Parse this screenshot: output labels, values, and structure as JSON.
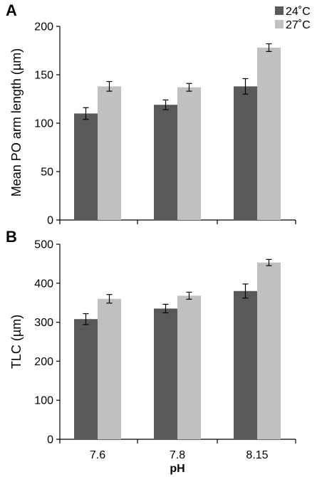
{
  "colors": {
    "series_24": "#595959",
    "series_27": "#c0c0c0",
    "axis": "#000000"
  },
  "chart_data": [
    {
      "panel": "A",
      "type": "bar",
      "categories": [
        "7.6",
        "7.8",
        "8.15"
      ],
      "ylabel": "Mean PO arm length (µm)",
      "xlabel": "",
      "ylim": [
        0,
        200
      ],
      "yticks": [
        0,
        50,
        100,
        150,
        200
      ],
      "grid": false,
      "legend": "top-right",
      "series": [
        {
          "name": "24˚C",
          "values": [
            110,
            119,
            138
          ],
          "errors": [
            6,
            5,
            8
          ]
        },
        {
          "name": "27˚C",
          "values": [
            138,
            137,
            178
          ],
          "errors": [
            5,
            4,
            4
          ]
        }
      ]
    },
    {
      "panel": "B",
      "type": "bar",
      "categories": [
        "7.6",
        "7.8",
        "8.15"
      ],
      "ylabel": "TLC (µm)",
      "xlabel": "pH",
      "ylim": [
        0,
        500
      ],
      "yticks": [
        0,
        100,
        200,
        300,
        400,
        500
      ],
      "grid": false,
      "series": [
        {
          "name": "24˚C",
          "values": [
            308,
            335,
            380
          ],
          "errors": [
            14,
            11,
            18
          ]
        },
        {
          "name": "27˚C",
          "values": [
            360,
            368,
            453
          ],
          "errors": [
            11,
            9,
            8
          ]
        }
      ]
    }
  ]
}
